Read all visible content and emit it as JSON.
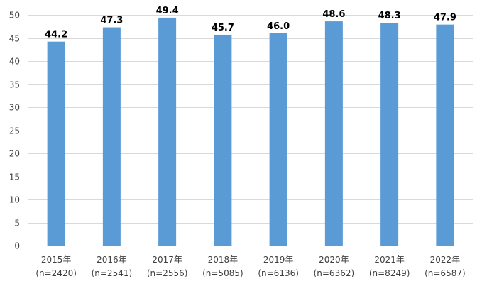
{
  "chart_data": {
    "type": "bar",
    "categories": [
      "2015年",
      "2016年",
      "2017年",
      "2018年",
      "2019年",
      "2020年",
      "2021年",
      "2022年"
    ],
    "sample_sizes": [
      "(n=2420)",
      "(n=2541)",
      "(n=2556)",
      "(n=5085)",
      "(n=6136)",
      "(n=6362)",
      "(n=8249)",
      "(n=6587)"
    ],
    "values": [
      44.2,
      47.3,
      49.4,
      45.7,
      46.0,
      48.6,
      48.3,
      47.9
    ],
    "data_labels": [
      "44.2",
      "47.3",
      "49.4",
      "45.7",
      "46.0",
      "48.6",
      "48.3",
      "47.9"
    ],
    "title": "",
    "xlabel": "",
    "ylabel": "",
    "ylim": [
      0,
      50
    ],
    "yticks": [
      "0",
      "5",
      "10",
      "15",
      "20",
      "25",
      "30",
      "35",
      "40",
      "45",
      "50"
    ],
    "grid": true,
    "legend": "none",
    "bar_color": "#5b9bd5",
    "grid_color": "#d9d9d9"
  }
}
